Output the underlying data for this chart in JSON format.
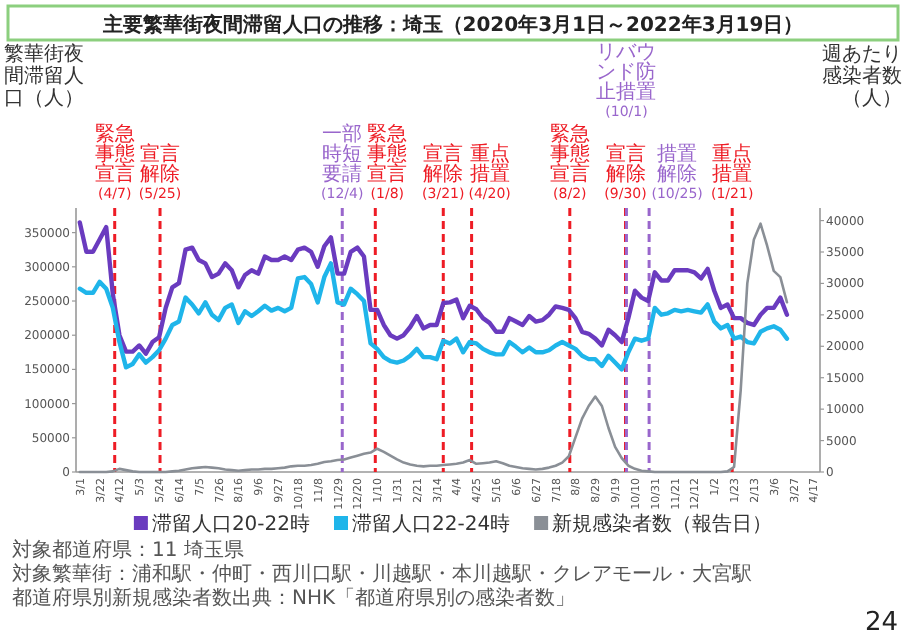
{
  "chart_data": {
    "type": "line",
    "title": "主要繁華街夜間滞留人口の推移：埼玉（2020年3月1日～2022年3月19日）",
    "ylabel": "繁華街夜間滞留人口（人）",
    "y2label": "週あたり感染者数（人）",
    "x": [
      "2020-03-01",
      "2020-03-08",
      "2020-03-15",
      "2020-03-22",
      "2020-03-29",
      "2020-04-05",
      "2020-04-12",
      "2020-04-19",
      "2020-04-26",
      "2020-05-03",
      "2020-05-10",
      "2020-05-17",
      "2020-05-24",
      "2020-05-31",
      "2020-06-07",
      "2020-06-14",
      "2020-06-21",
      "2020-06-28",
      "2020-07-05",
      "2020-07-12",
      "2020-07-19",
      "2020-07-26",
      "2020-08-02",
      "2020-08-09",
      "2020-08-16",
      "2020-08-23",
      "2020-08-30",
      "2020-09-06",
      "2020-09-13",
      "2020-09-20",
      "2020-09-27",
      "2020-10-04",
      "2020-10-11",
      "2020-10-18",
      "2020-10-25",
      "2020-11-01",
      "2020-11-08",
      "2020-11-15",
      "2020-11-22",
      "2020-11-29",
      "2020-12-06",
      "2020-12-13",
      "2020-12-20",
      "2020-12-27",
      "2021-01-03",
      "2021-01-10",
      "2021-01-17",
      "2021-01-24",
      "2021-01-31",
      "2021-02-07",
      "2021-02-14",
      "2021-02-21",
      "2021-02-28",
      "2021-03-07",
      "2021-03-14",
      "2021-03-21",
      "2021-03-28",
      "2021-04-04",
      "2021-04-11",
      "2021-04-18",
      "2021-04-25",
      "2021-05-02",
      "2021-05-09",
      "2021-05-16",
      "2021-05-23",
      "2021-05-30",
      "2021-06-06",
      "2021-06-13",
      "2021-06-20",
      "2021-06-27",
      "2021-07-04",
      "2021-07-11",
      "2021-07-18",
      "2021-07-25",
      "2021-08-01",
      "2021-08-08",
      "2021-08-15",
      "2021-08-22",
      "2021-08-29",
      "2021-09-05",
      "2021-09-12",
      "2021-09-19",
      "2021-09-26",
      "2021-10-03",
      "2021-10-10",
      "2021-10-17",
      "2021-10-24",
      "2021-10-31",
      "2021-11-07",
      "2021-11-14",
      "2021-11-21",
      "2021-11-28",
      "2021-12-05",
      "2021-12-12",
      "2021-12-19",
      "2021-12-26",
      "2022-01-02",
      "2022-01-09",
      "2022-01-16",
      "2022-01-23",
      "2022-01-30",
      "2022-02-06",
      "2022-02-13",
      "2022-02-20",
      "2022-02-27",
      "2022-03-06",
      "2022-03-13",
      "2022-03-20"
    ],
    "series": [
      {
        "name": "滞留人口20-22時",
        "color": "#6a3bbf",
        "values": [
          365000,
          322000,
          322000,
          340000,
          358000,
          260000,
          200000,
          176000,
          176000,
          185000,
          173000,
          190000,
          197000,
          240000,
          270000,
          276000,
          325000,
          328000,
          310000,
          305000,
          285000,
          290000,
          305000,
          295000,
          270000,
          288000,
          295000,
          290000,
          315000,
          310000,
          310000,
          315000,
          310000,
          325000,
          328000,
          322000,
          300000,
          330000,
          343000,
          290000,
          290000,
          322000,
          328000,
          315000,
          237000,
          237000,
          215000,
          200000,
          195000,
          200000,
          212000,
          228000,
          210000,
          215000,
          215000,
          247000,
          248000,
          252000,
          225000,
          243000,
          238000,
          225000,
          218000,
          205000,
          205000,
          225000,
          220000,
          215000,
          228000,
          220000,
          222000,
          230000,
          242000,
          240000,
          237000,
          225000,
          205000,
          202000,
          195000,
          185000,
          208000,
          200000,
          190000,
          225000,
          265000,
          255000,
          250000,
          292000,
          280000,
          280000,
          295000,
          295000,
          295000,
          292000,
          283000,
          297000,
          265000,
          240000,
          245000,
          225000,
          225000,
          218000,
          215000,
          230000,
          240000,
          240000,
          255000,
          230000
        ]
      },
      {
        "name": "滞留人口22-24時",
        "color": "#1fb5ea",
        "values": [
          268000,
          262000,
          262000,
          278000,
          268000,
          240000,
          190000,
          153000,
          158000,
          172000,
          160000,
          168000,
          178000,
          195000,
          215000,
          220000,
          255000,
          245000,
          232000,
          248000,
          230000,
          222000,
          240000,
          245000,
          218000,
          235000,
          228000,
          235000,
          243000,
          236000,
          240000,
          235000,
          240000,
          283000,
          285000,
          275000,
          248000,
          285000,
          305000,
          248000,
          245000,
          268000,
          260000,
          250000,
          188000,
          180000,
          168000,
          162000,
          160000,
          163000,
          170000,
          180000,
          168000,
          168000,
          165000,
          192000,
          188000,
          195000,
          175000,
          190000,
          188000,
          180000,
          175000,
          172000,
          172000,
          190000,
          183000,
          175000,
          182000,
          175000,
          175000,
          178000,
          185000,
          190000,
          185000,
          180000,
          170000,
          165000,
          165000,
          155000,
          170000,
          160000,
          150000,
          175000,
          195000,
          192000,
          195000,
          240000,
          230000,
          232000,
          237000,
          235000,
          237000,
          235000,
          233000,
          245000,
          220000,
          210000,
          215000,
          195000,
          198000,
          190000,
          188000,
          205000,
          210000,
          213000,
          208000,
          195000
        ]
      },
      {
        "name": "新規感染者数（報告日）",
        "color": "#8a8f96",
        "axis": "y2",
        "values": [
          0,
          0,
          0,
          0,
          0,
          100,
          500,
          300,
          100,
          0,
          0,
          0,
          0,
          0,
          100,
          200,
          400,
          600,
          700,
          800,
          700,
          600,
          400,
          300,
          200,
          300,
          400,
          400,
          500,
          500,
          600,
          700,
          900,
          1000,
          1000,
          1100,
          1300,
          1600,
          1700,
          1900,
          2000,
          2300,
          2600,
          2900,
          3100,
          3700,
          3200,
          2600,
          2000,
          1500,
          1200,
          1000,
          900,
          1000,
          1000,
          1100,
          1200,
          1300,
          1500,
          1900,
          1300,
          1400,
          1500,
          1700,
          1400,
          1000,
          800,
          600,
          500,
          400,
          500,
          700,
          1000,
          1500,
          2500,
          5500,
          8500,
          10500,
          12000,
          10500,
          7000,
          4000,
          2200,
          1000,
          500,
          200,
          100,
          0,
          0,
          0,
          0,
          0,
          0,
          0,
          0,
          0,
          0,
          0,
          100,
          800,
          13000,
          30000,
          37000,
          39500,
          36000,
          32000,
          31000,
          27000
        ]
      }
    ],
    "xlim": [
      "2020-02-26",
      "2022-04-24"
    ],
    "xticks": [
      {
        "value": "2020-03-01",
        "label": "3/1"
      },
      {
        "value": "2020-03-22",
        "label": "3/22"
      },
      {
        "value": "2020-04-12",
        "label": "4/12"
      },
      {
        "value": "2020-05-03",
        "label": "5/3"
      },
      {
        "value": "2020-05-24",
        "label": "5/24"
      },
      {
        "value": "2020-06-14",
        "label": "6/14"
      },
      {
        "value": "2020-07-05",
        "label": "7/5"
      },
      {
        "value": "2020-07-26",
        "label": "7/26"
      },
      {
        "value": "2020-08-16",
        "label": "8/16"
      },
      {
        "value": "2020-09-06",
        "label": "9/6"
      },
      {
        "value": "2020-09-27",
        "label": "9/27"
      },
      {
        "value": "2020-10-18",
        "label": "10/18"
      },
      {
        "value": "2020-11-08",
        "label": "11/8"
      },
      {
        "value": "2020-11-29",
        "label": "11/29"
      },
      {
        "value": "2020-12-20",
        "label": "12/20"
      },
      {
        "value": "2021-01-10",
        "label": "1/10"
      },
      {
        "value": "2021-01-31",
        "label": "1/31"
      },
      {
        "value": "2021-02-21",
        "label": "2/21"
      },
      {
        "value": "2021-03-14",
        "label": "3/14"
      },
      {
        "value": "2021-04-04",
        "label": "4/4"
      },
      {
        "value": "2021-04-25",
        "label": "4/25"
      },
      {
        "value": "2021-05-16",
        "label": "5/16"
      },
      {
        "value": "2021-06-06",
        "label": "6/6"
      },
      {
        "value": "2021-06-27",
        "label": "6/27"
      },
      {
        "value": "2021-07-18",
        "label": "7/18"
      },
      {
        "value": "2021-08-08",
        "label": "8/8"
      },
      {
        "value": "2021-08-29",
        "label": "8/29"
      },
      {
        "value": "2021-09-19",
        "label": "9/19"
      },
      {
        "value": "2021-10-10",
        "label": "10/10"
      },
      {
        "value": "2021-10-31",
        "label": "10/31"
      },
      {
        "value": "2021-11-21",
        "label": "11/21"
      },
      {
        "value": "2021-12-12",
        "label": "12/12"
      },
      {
        "value": "2022-01-02",
        "label": "1/2"
      },
      {
        "value": "2022-01-23",
        "label": "1/23"
      },
      {
        "value": "2022-02-13",
        "label": "2/13"
      },
      {
        "value": "2022-03-06",
        "label": "3/6"
      },
      {
        "value": "2022-03-27",
        "label": "3/27"
      },
      {
        "value": "2022-04-17",
        "label": "4/17"
      }
    ],
    "ylim": [
      0,
      386000
    ],
    "yticks": [
      0,
      50000,
      100000,
      150000,
      200000,
      250000,
      300000,
      350000
    ],
    "y2lim": [
      0,
      42000
    ],
    "y2ticks": [
      0,
      5000,
      10000,
      15000,
      20000,
      25000,
      30000,
      35000,
      40000
    ],
    "ref_lines": [
      {
        "axis": "x",
        "value": "2020-04-07",
        "label": "緊急事態宣言(4/7)",
        "color": "#ee1c25",
        "line_style": "dashed"
      },
      {
        "axis": "x",
        "value": "2020-05-25",
        "label": "宣言解除(5/25)",
        "color": "#ee1c25",
        "line_style": "dashed"
      },
      {
        "axis": "x",
        "value": "2020-12-04",
        "label": "一部時短要請(12/4)",
        "color": "#9966cc",
        "line_style": "dashed"
      },
      {
        "axis": "x",
        "value": "2021-01-08",
        "label": "緊急事態宣言(1/8)",
        "color": "#ee1c25",
        "line_style": "dashed"
      },
      {
        "axis": "x",
        "value": "2021-03-21",
        "label": "宣言解除(3/21)",
        "color": "#ee1c25",
        "line_style": "dashed"
      },
      {
        "axis": "x",
        "value": "2021-04-20",
        "label": "重点措置(4/20)",
        "color": "#ee1c25",
        "line_style": "dashed"
      },
      {
        "axis": "x",
        "value": "2021-08-02",
        "label": "緊急事態宣言(8/2)",
        "color": "#ee1c25",
        "line_style": "dashed"
      },
      {
        "axis": "x",
        "value": "2021-09-30",
        "label": "宣言解除(9/30)",
        "color": "#ee1c25",
        "line_style": "dashed"
      },
      {
        "axis": "x",
        "value": "2021-10-01",
        "label": "リバウンド防止措置(10/1)",
        "color": "#9966cc",
        "line_style": "dashed"
      },
      {
        "axis": "x",
        "value": "2021-10-25",
        "label": "措置解除(10/25)",
        "color": "#9966cc",
        "line_style": "dashed"
      },
      {
        "axis": "x",
        "value": "2022-01-21",
        "label": "重点措置(1/21)",
        "color": "#ee1c25",
        "line_style": "dashed"
      }
    ],
    "grid": false,
    "legend": "bottom",
    "annotations": [
      "対象都道府県：11 埼玉県",
      "対象繁華街：浦和駅・仲町・西川口駅・川越駅・本川越駅・クレアモール・大宮駅",
      "都道府県別新規感染者数出典：NHK「都道府県別の感染者数」",
      "24"
    ]
  }
}
